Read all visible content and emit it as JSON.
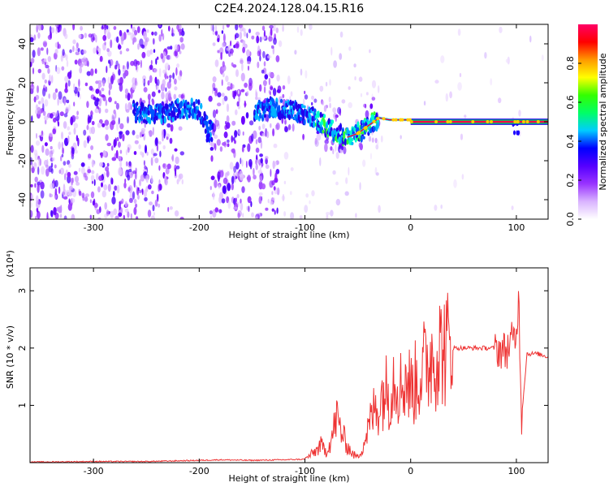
{
  "title": "C2E4.2024.128.04.15.R16",
  "chart_data": [
    {
      "type": "heatmap",
      "title": "C2E4.2024.128.04.15.R16",
      "xlabel": "Height of straight line (km)",
      "ylabel": "Frequency (Hz)",
      "xlim": [
        -360,
        130
      ],
      "ylim": [
        -50,
        50
      ],
      "x_ticks": [
        -300,
        -200,
        -100,
        0,
        100
      ],
      "y_ticks": [
        -40,
        -20,
        0,
        20,
        40
      ],
      "colorbar": {
        "label": "Normalized spectral amplitude",
        "range": [
          0,
          1
        ],
        "ticks": [
          0.0,
          0.2,
          0.4,
          0.6,
          0.8
        ],
        "colors": [
          "#ffffff",
          "#d9b3ff",
          "#9933ff",
          "#5500ff",
          "#0000ff",
          "#00ccff",
          "#00ff66",
          "#33ff00",
          "#ffff00",
          "#ff9900",
          "#ff0000",
          "#ff0066"
        ]
      },
      "ridge": {
        "x": [
          -260,
          -250,
          -210,
          -200,
          -190,
          -145,
          -130,
          -110,
          -90,
          -75,
          -60,
          -50,
          -40,
          -30,
          -20,
          -10,
          0,
          10,
          40,
          70,
          100,
          130
        ],
        "frequency": [
          5,
          4,
          7,
          6,
          -5,
          6,
          7,
          5,
          2,
          -4,
          -8,
          -6,
          -2,
          2,
          1,
          1,
          1,
          0,
          0,
          0,
          0,
          0
        ]
      }
    },
    {
      "type": "line",
      "xlabel": "Height of straight line (km)",
      "ylabel": "SNR (10 * v/v)",
      "y_exponent_label": "(x10⁴)",
      "xlim": [
        -360,
        130
      ],
      "ylim": [
        0,
        3.4
      ],
      "x_ticks": [
        -300,
        -200,
        -100,
        0,
        100
      ],
      "y_ticks": [
        1,
        2,
        3
      ],
      "line_color": "#ee3333",
      "series": [
        {
          "x": [
            -360,
            -300,
            -250,
            -200,
            -180,
            -150,
            -120,
            -100,
            -90,
            -85,
            -80,
            -75,
            -70,
            -65,
            -60,
            -55,
            -50,
            -45,
            -40,
            -35,
            -30,
            -25,
            -20,
            -15,
            -10,
            -5,
            0,
            5,
            10,
            15,
            20,
            30,
            40,
            50,
            60,
            70,
            80,
            90,
            95,
            100,
            102,
            105,
            110,
            120,
            130
          ],
          "values": [
            0.01,
            0.02,
            0.02,
            0.04,
            0.05,
            0.04,
            0.05,
            0.06,
            0.2,
            0.3,
            0.2,
            0.4,
            0.8,
            0.5,
            0.3,
            0.15,
            0.1,
            0.3,
            0.6,
            0.9,
            1.0,
            1.3,
            1.2,
            1.6,
            1.3,
            1.5,
            1.3,
            1.4,
            1.6,
            1.7,
            1.9,
            2.0,
            2.0,
            2.0,
            2.0,
            2.0,
            2.0,
            1.95,
            2.1,
            2.2,
            3.0,
            0.8,
            1.9,
            1.9,
            1.85
          ]
        }
      ]
    }
  ]
}
